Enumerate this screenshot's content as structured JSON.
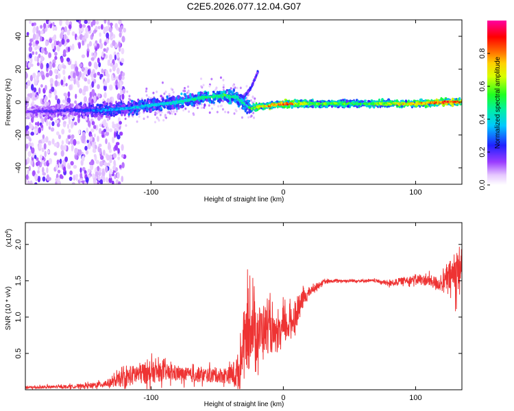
{
  "title": "C2E5.2026.077.12.04.G07",
  "chart_data": [
    {
      "type": "heatmap",
      "name": "spectrogram",
      "xlabel": "Height of straight line (km)",
      "ylabel": "Frequency (Hz)",
      "xlim": [
        -195,
        135
      ],
      "ylim": [
        -50,
        50
      ],
      "xticks": [
        -100,
        0,
        100
      ],
      "yticks": [
        -40,
        -20,
        0,
        20,
        40
      ],
      "xtick_labels": [
        "-100",
        "0",
        "100"
      ],
      "ytick_labels": [
        "-40",
        "-20",
        "0",
        "20",
        "40"
      ],
      "colorbar": {
        "label": "Normalized spectral amplitude",
        "range": [
          0.0,
          1.0
        ],
        "ticks": [
          0.0,
          0.2,
          0.4,
          0.6,
          0.8
        ],
        "tick_labels": [
          "0.0",
          "0.2",
          "0.4",
          "0.6",
          "0.8"
        ],
        "colormap": "rainbow (white-violet-blue-cyan-green-yellow-red-magenta)"
      },
      "ridge": {
        "description": "dominant frequency vs height",
        "x": [
          -195,
          -160,
          -140,
          -120,
          -100,
          -80,
          -60,
          -45,
          -35,
          -28,
          -25,
          -20,
          -10,
          0,
          20,
          60,
          100,
          120,
          135
        ],
        "y": [
          -6,
          -5,
          -5,
          -4,
          -2,
          0,
          3,
          4,
          3,
          -2,
          -4,
          -3,
          -2,
          -1,
          -1,
          -1,
          -1,
          0,
          0
        ],
        "amplitude": [
          0.15,
          0.2,
          0.3,
          0.35,
          0.35,
          0.4,
          0.45,
          0.5,
          0.45,
          0.4,
          0.5,
          0.6,
          0.75,
          0.8,
          0.55,
          0.5,
          0.7,
          0.8,
          0.75
        ]
      },
      "branch": {
        "x": [
          -30,
          -25,
          -22,
          -19
        ],
        "y": [
          3,
          8,
          13,
          19
        ]
      }
    },
    {
      "type": "line",
      "name": "snr",
      "xlabel": "Height of straight line (km)",
      "ylabel": "SNR (10 * v/v)",
      "multiplier": "(x10",
      "multiplier_exp": "4",
      "multiplier_close": ")",
      "color": "#ee3333",
      "xlim": [
        -195,
        135
      ],
      "ylim": [
        0.0,
        2.3
      ],
      "xticks": [
        -100,
        0,
        100
      ],
      "yticks": [
        0.5,
        1.0,
        1.5,
        2.0
      ],
      "xtick_labels": [
        "-100",
        "0",
        "100"
      ],
      "ytick_labels": [
        "0.5",
        "1.0",
        "1.5",
        "2.0"
      ],
      "series": [
        {
          "name": "SNR",
          "x": [
            -195,
            -170,
            -150,
            -140,
            -130,
            -120,
            -110,
            -100,
            -90,
            -80,
            -70,
            -60,
            -50,
            -40,
            -33,
            -30,
            -26,
            -24,
            -20,
            -15,
            -10,
            -5,
            0,
            5,
            10,
            15,
            20,
            25,
            30,
            40,
            50,
            60,
            70,
            80,
            90,
            100,
            110,
            120,
            125,
            130,
            135
          ],
          "y": [
            0.03,
            0.04,
            0.05,
            0.07,
            0.1,
            0.16,
            0.22,
            0.24,
            0.24,
            0.22,
            0.2,
            0.2,
            0.2,
            0.2,
            0.25,
            0.7,
            0.8,
            0.95,
            0.75,
            0.85,
            0.8,
            0.7,
            0.85,
            0.9,
            1.05,
            1.25,
            1.35,
            1.42,
            1.48,
            1.5,
            1.5,
            1.5,
            1.5,
            1.46,
            1.5,
            1.52,
            1.5,
            1.45,
            1.55,
            1.6,
            1.75
          ],
          "noise": [
            0.02,
            0.02,
            0.03,
            0.04,
            0.06,
            0.12,
            0.15,
            0.15,
            0.12,
            0.1,
            0.1,
            0.1,
            0.1,
            0.12,
            0.3,
            0.35,
            0.55,
            0.45,
            0.4,
            0.35,
            0.3,
            0.2,
            0.25,
            0.2,
            0.2,
            0.12,
            0.06,
            0.04,
            0.03,
            0.02,
            0.02,
            0.02,
            0.02,
            0.04,
            0.05,
            0.06,
            0.08,
            0.1,
            0.2,
            0.3,
            0.3
          ]
        }
      ]
    }
  ]
}
